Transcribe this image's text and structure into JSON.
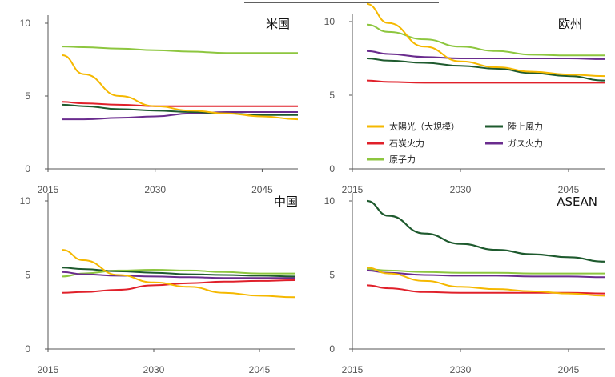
{
  "colors": {
    "solar": "#F5B800",
    "coal": "#E0202A",
    "wind": "#1E5A2E",
    "gas": "#6A2C8E",
    "nuclear": "#8DC63F",
    "axis": "#555555"
  },
  "legend": {
    "items": [
      {
        "key": "solar",
        "label": "太陽光（大規模）"
      },
      {
        "key": "wind",
        "label": "陸上風力"
      },
      {
        "key": "coal",
        "label": "石炭火力"
      },
      {
        "key": "gas",
        "label": "ガス火力"
      },
      {
        "key": "nuclear",
        "label": "原子力"
      }
    ]
  },
  "chart_data": [
    {
      "type": "line",
      "title": "米国",
      "x": [
        2017,
        2020,
        2025,
        2030,
        2035,
        2040,
        2045,
        2050
      ],
      "xticks": [
        "2015",
        "2030",
        "2045"
      ],
      "xtick_values": [
        2015,
        2030,
        2045
      ],
      "yticks": [
        "0",
        "5",
        "10"
      ],
      "ytick_values": [
        0,
        5,
        10
      ],
      "xlim": [
        2015,
        2050
      ],
      "ylim": [
        0,
        10
      ],
      "series": [
        {
          "name": "太陽光（大規模）",
          "key": "solar",
          "values": [
            7.8,
            6.5,
            5.0,
            4.3,
            4.0,
            3.8,
            3.6,
            3.4
          ]
        },
        {
          "name": "陸上風力",
          "key": "wind",
          "values": [
            4.4,
            4.3,
            4.1,
            4.0,
            3.9,
            3.8,
            3.7,
            3.7
          ]
        },
        {
          "name": "石炭火力",
          "key": "coal",
          "values": [
            4.6,
            4.5,
            4.4,
            4.3,
            4.3,
            4.3,
            4.3,
            4.3
          ]
        },
        {
          "name": "ガス火力",
          "key": "gas",
          "values": [
            3.4,
            3.4,
            3.5,
            3.6,
            3.8,
            3.9,
            3.9,
            3.9
          ]
        },
        {
          "name": "原子力",
          "key": "nuclear",
          "values": [
            8.4,
            8.35,
            8.25,
            8.15,
            8.05,
            7.95,
            7.95,
            7.95
          ]
        }
      ]
    },
    {
      "type": "line",
      "title": "欧州",
      "x": [
        2017,
        2020,
        2025,
        2030,
        2035,
        2040,
        2045,
        2050
      ],
      "xticks": [
        "2015",
        "2030",
        "2045"
      ],
      "xtick_values": [
        2015,
        2030,
        2045
      ],
      "yticks": [
        "0",
        "5",
        "10"
      ],
      "ytick_values": [
        0,
        5,
        10
      ],
      "xlim": [
        2015,
        2050
      ],
      "ylim": [
        0,
        10
      ],
      "series": [
        {
          "name": "太陽光（大規模）",
          "key": "solar",
          "values": [
            11.2,
            9.9,
            8.3,
            7.3,
            6.9,
            6.6,
            6.4,
            6.3
          ]
        },
        {
          "name": "陸上風力",
          "key": "wind",
          "values": [
            7.5,
            7.35,
            7.2,
            7.0,
            6.8,
            6.5,
            6.3,
            6.0
          ]
        },
        {
          "name": "石炭火力",
          "key": "coal",
          "values": [
            6.0,
            5.9,
            5.85,
            5.85,
            5.85,
            5.85,
            5.85,
            5.85
          ]
        },
        {
          "name": "ガス火力",
          "key": "gas",
          "values": [
            8.0,
            7.8,
            7.6,
            7.5,
            7.5,
            7.5,
            7.5,
            7.45
          ]
        },
        {
          "name": "原子力",
          "key": "nuclear",
          "values": [
            9.8,
            9.3,
            8.8,
            8.3,
            8.0,
            7.75,
            7.7,
            7.7
          ]
        }
      ]
    },
    {
      "type": "line",
      "title": "中国",
      "x": [
        2017,
        2020,
        2025,
        2030,
        2035,
        2040,
        2045,
        2050
      ],
      "xticks": [
        "2015",
        "2030",
        "2045"
      ],
      "xtick_values": [
        2015,
        2030,
        2045
      ],
      "yticks": [
        "0",
        "5",
        "10"
      ],
      "ytick_values": [
        0,
        5,
        10
      ],
      "xlim": [
        2015,
        2050
      ],
      "ylim": [
        0,
        10
      ],
      "series": [
        {
          "name": "太陽光（大規模）",
          "key": "solar",
          "values": [
            6.7,
            6.0,
            5.0,
            4.5,
            4.2,
            3.8,
            3.6,
            3.5
          ]
        },
        {
          "name": "陸上風力",
          "key": "wind",
          "values": [
            5.5,
            5.4,
            5.25,
            5.15,
            5.05,
            5.0,
            4.95,
            4.9
          ]
        },
        {
          "name": "石炭火力",
          "key": "coal",
          "values": [
            3.8,
            3.85,
            4.0,
            4.3,
            4.45,
            4.55,
            4.6,
            4.65
          ]
        },
        {
          "name": "ガス火力",
          "key": "gas",
          "values": [
            5.2,
            5.05,
            4.95,
            4.9,
            4.85,
            4.8,
            4.8,
            4.8
          ]
        },
        {
          "name": "原子力",
          "key": "nuclear",
          "values": [
            4.9,
            5.1,
            5.3,
            5.35,
            5.3,
            5.2,
            5.1,
            5.1
          ]
        }
      ]
    },
    {
      "type": "line",
      "title": "ASEAN",
      "x": [
        2017,
        2020,
        2025,
        2030,
        2035,
        2040,
        2045,
        2050
      ],
      "xticks": [
        "2015",
        "2030",
        "2045"
      ],
      "xtick_values": [
        2015,
        2030,
        2045
      ],
      "yticks": [
        "0",
        "5",
        "10"
      ],
      "ytick_values": [
        0,
        5,
        10
      ],
      "xlim": [
        2015,
        2050
      ],
      "ylim": [
        0,
        10
      ],
      "series": [
        {
          "name": "太陽光（大規模）",
          "key": "solar",
          "values": [
            5.5,
            5.1,
            4.6,
            4.2,
            4.05,
            3.9,
            3.75,
            3.6
          ]
        },
        {
          "name": "陸上風力",
          "key": "wind",
          "values": [
            10.0,
            9.0,
            7.8,
            7.1,
            6.7,
            6.4,
            6.2,
            5.9
          ]
        },
        {
          "name": "石炭火力",
          "key": "coal",
          "values": [
            4.3,
            4.1,
            3.85,
            3.8,
            3.8,
            3.8,
            3.8,
            3.75
          ]
        },
        {
          "name": "ガス火力",
          "key": "gas",
          "values": [
            5.3,
            5.15,
            5.0,
            4.95,
            4.95,
            4.9,
            4.9,
            4.85
          ]
        },
        {
          "name": "原子力",
          "key": "nuclear",
          "values": [
            5.4,
            5.3,
            5.2,
            5.15,
            5.15,
            5.1,
            5.1,
            5.1
          ]
        }
      ]
    }
  ]
}
